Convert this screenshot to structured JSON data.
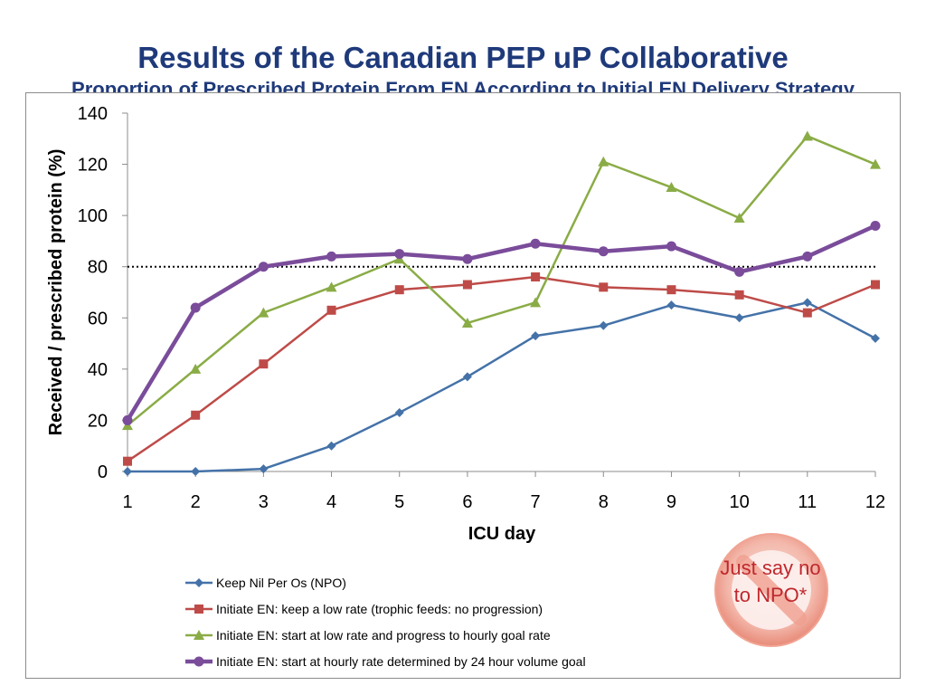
{
  "slide": {
    "title": "Results of the Canadian PEP uP Collaborative",
    "subtitle": "Proportion of Prescribed Protein From EN According to Initial EN Delivery Strategy"
  },
  "badge": {
    "line1": "Just say no",
    "line2": "to NPO*",
    "icon": "no-symbol-icon"
  },
  "chart_data": {
    "type": "line",
    "xlabel": "ICU day",
    "ylabel": "Received / prescribed protein (%)",
    "x": [
      1,
      2,
      3,
      4,
      5,
      6,
      7,
      8,
      9,
      10,
      11,
      12
    ],
    "ylim": [
      0,
      140
    ],
    "yticks": [
      0,
      20,
      40,
      60,
      80,
      100,
      120,
      140
    ],
    "grid": false,
    "reference_line": {
      "y": 80,
      "style": "dotted",
      "color": "#000000"
    },
    "legend_position": "bottom-left",
    "series": [
      {
        "name": "Keep Nil Per Os (NPO)",
        "color": "#4472a8",
        "marker": "diamond",
        "values": [
          0,
          0,
          1,
          10,
          23,
          37,
          53,
          57,
          65,
          60,
          66,
          52
        ]
      },
      {
        "name": "Initiate EN: keep a low rate (trophic feeds: no progression)",
        "color": "#be4b48",
        "marker": "square",
        "values": [
          4,
          22,
          42,
          63,
          71,
          73,
          76,
          72,
          71,
          69,
          62,
          73
        ]
      },
      {
        "name": "Initiate EN: start at low rate and progress to hourly goal rate",
        "color": "#8aac46",
        "marker": "triangle",
        "values": [
          18,
          40,
          62,
          72,
          83,
          58,
          66,
          121,
          111,
          99,
          131,
          120
        ]
      },
      {
        "name": "Initiate EN: start at hourly rate determined by 24 hour volume goal",
        "color": "#7a4c9a",
        "marker": "circle",
        "values": [
          20,
          64,
          80,
          84,
          85,
          83,
          89,
          86,
          88,
          78,
          84,
          96
        ]
      }
    ]
  }
}
